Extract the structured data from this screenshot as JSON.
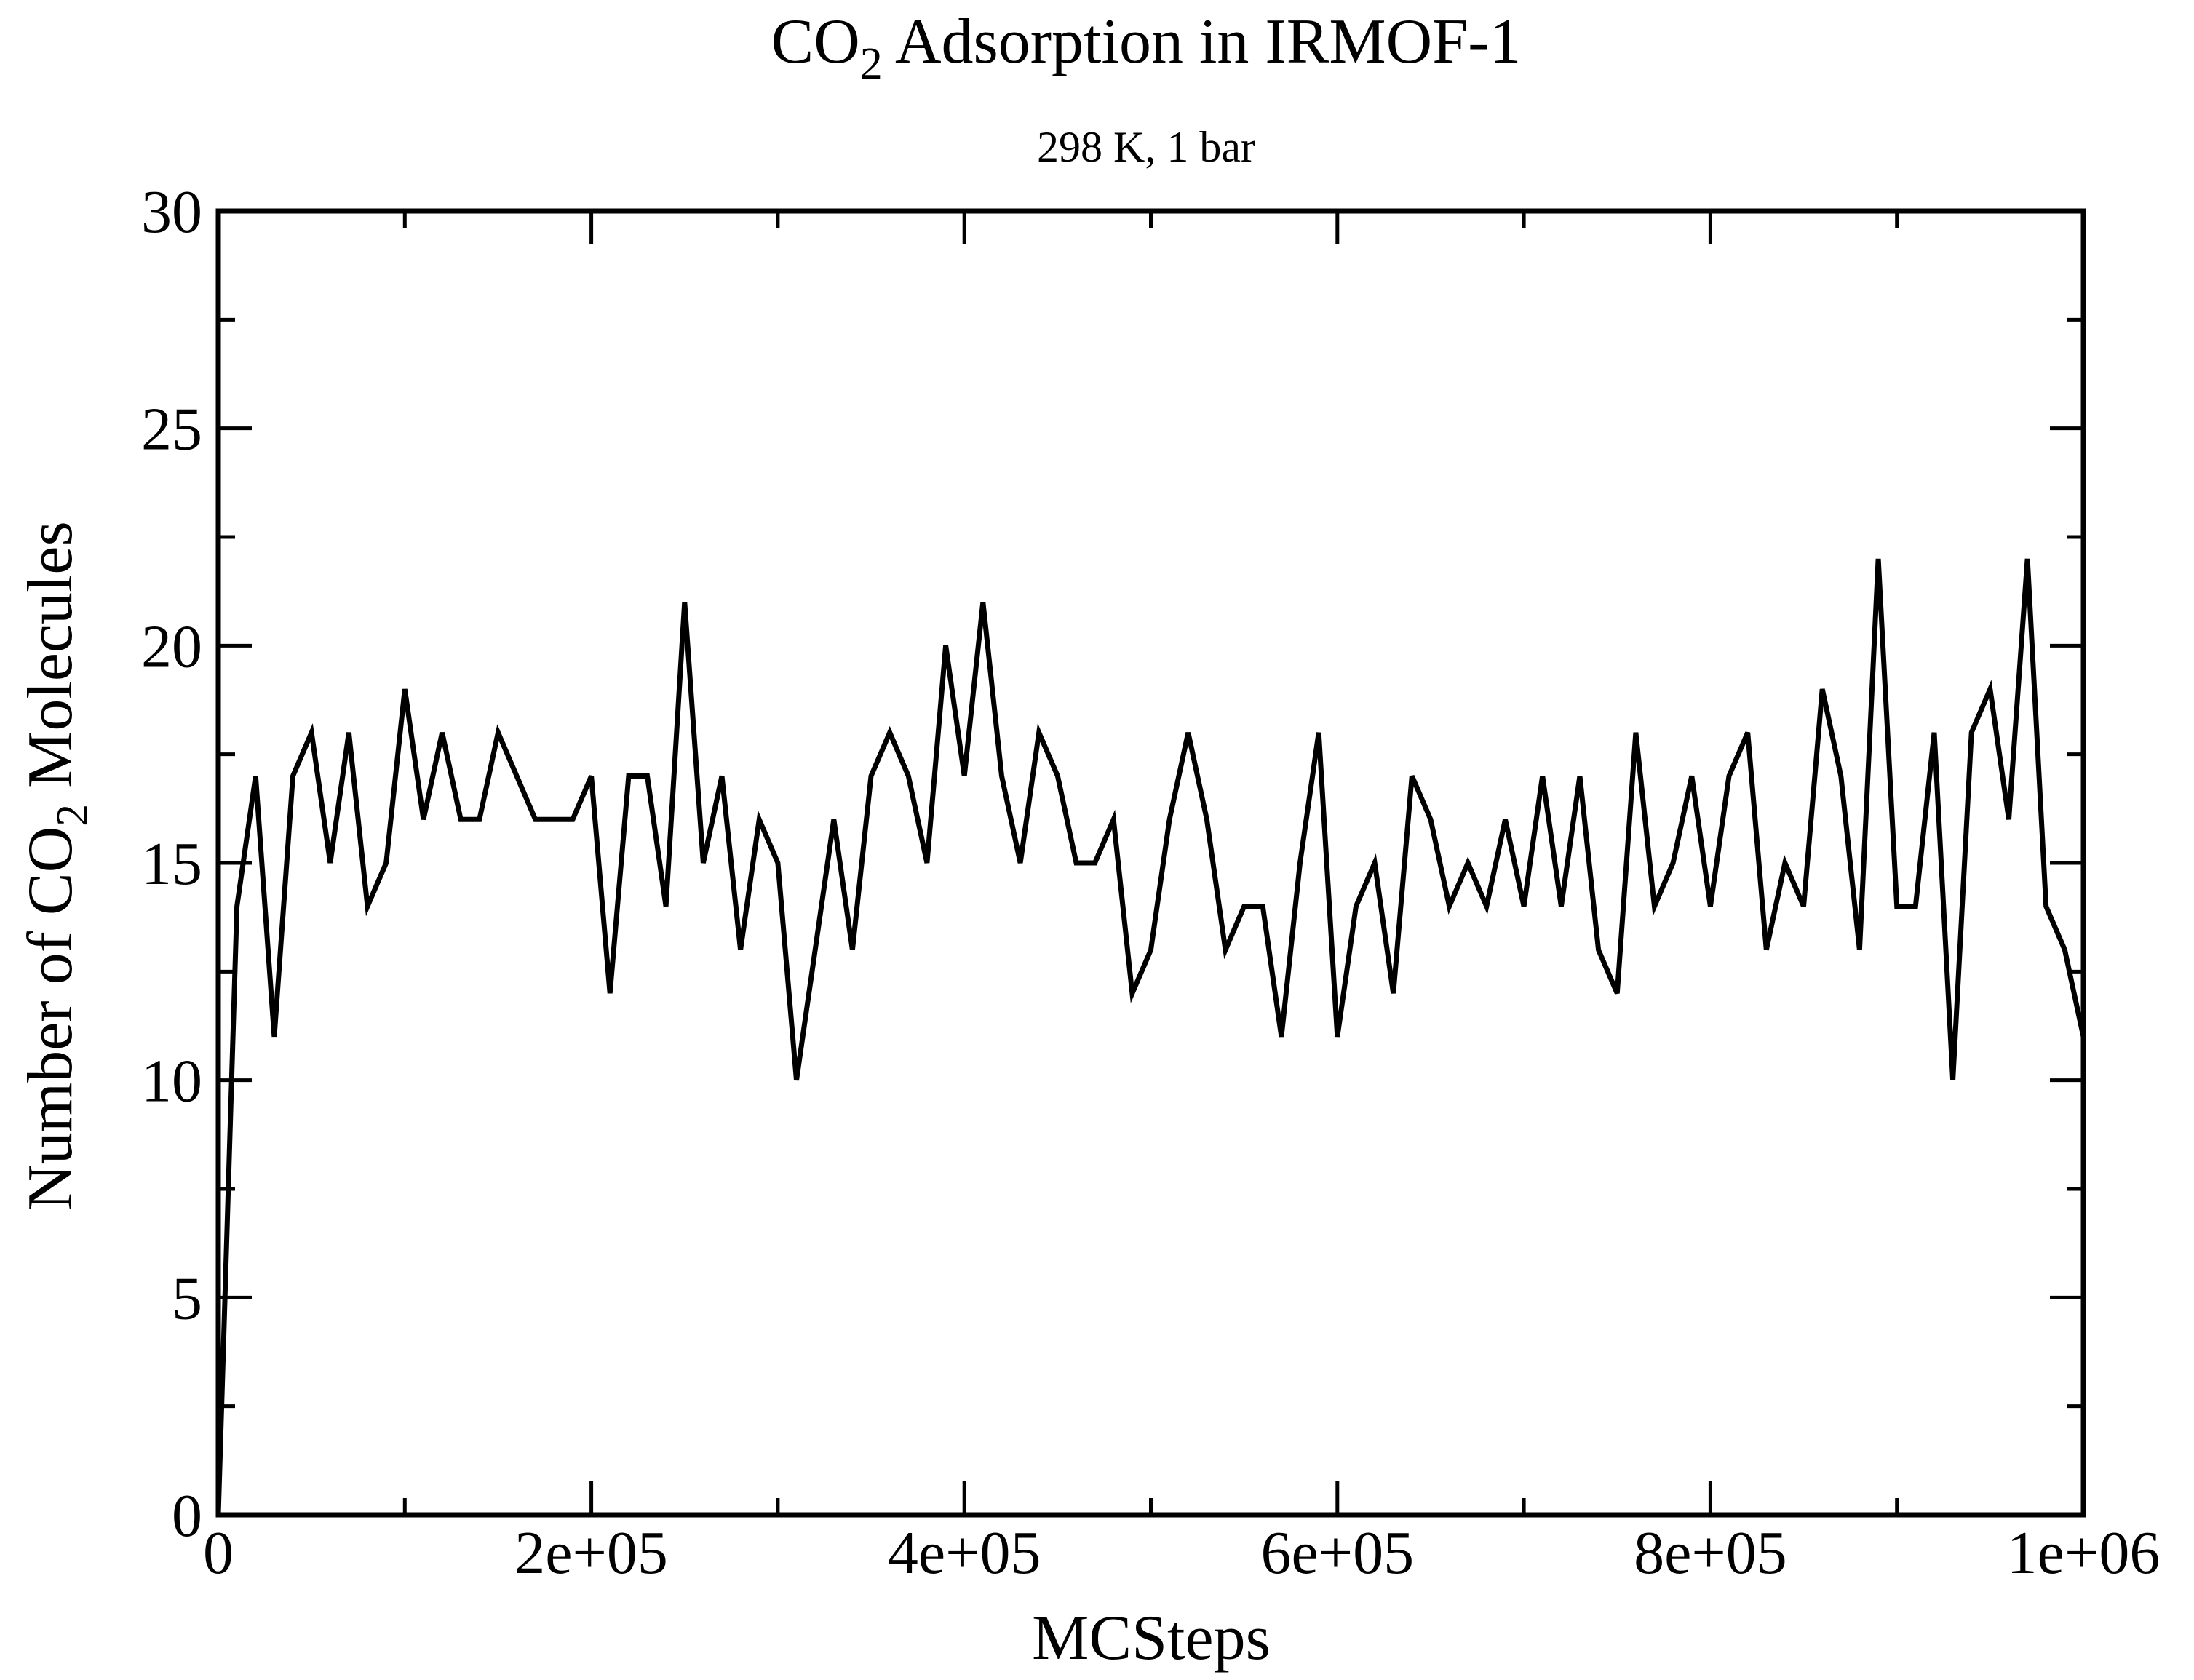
{
  "chart_data": {
    "type": "line",
    "title_main": "CO",
    "title_sub": "2",
    "title_rest": " Adsorption in IRMOF-1",
    "subtitle": "298 K, 1 bar",
    "xlabel": "MCSteps",
    "ylabel_main": "Number of CO",
    "ylabel_sub": "2",
    "ylabel_rest": " Molecules",
    "xlim": [
      0,
      1000000
    ],
    "ylim": [
      0,
      30
    ],
    "x_ticks": [
      {
        "value": 0,
        "label": "0"
      },
      {
        "value": 200000,
        "label": "2e+05"
      },
      {
        "value": 400000,
        "label": "4e+05"
      },
      {
        "value": 600000,
        "label": "6e+05"
      },
      {
        "value": 800000,
        "label": "8e+05"
      },
      {
        "value": 1000000,
        "label": "1e+06"
      }
    ],
    "x_minor_ticks": [
      100000,
      300000,
      500000,
      700000,
      900000
    ],
    "y_ticks": [
      {
        "value": 0,
        "label": "0"
      },
      {
        "value": 5,
        "label": "5"
      },
      {
        "value": 10,
        "label": "10"
      },
      {
        "value": 15,
        "label": "15"
      },
      {
        "value": 20,
        "label": "20"
      },
      {
        "value": 25,
        "label": "25"
      },
      {
        "value": 30,
        "label": "30"
      }
    ],
    "y_minor_ticks": [
      2.5,
      7.5,
      12.5,
      17.5,
      22.5,
      27.5
    ],
    "grid": false,
    "line_color": "#000000",
    "series": [
      {
        "x": [
          0,
          10000,
          20000,
          30000,
          40000,
          50000,
          60000,
          70000,
          80000,
          90000,
          100000,
          110000,
          120000,
          130000,
          140000,
          150000,
          160000,
          170000,
          180000,
          190000,
          200000,
          210000,
          220000,
          230000,
          240000,
          250000,
          260000,
          270000,
          280000,
          290000,
          300000,
          310000,
          320000,
          330000,
          340000,
          350000,
          360000,
          370000,
          380000,
          390000,
          400000,
          410000,
          420000,
          430000,
          440000,
          450000,
          460000,
          470000,
          480000,
          490000,
          500000,
          510000,
          520000,
          530000,
          540000,
          550000,
          560000,
          570000,
          580000,
          590000,
          600000,
          610000,
          620000,
          630000,
          640000,
          650000,
          660000,
          670000,
          680000,
          690000,
          700000,
          710000,
          720000,
          730000,
          740000,
          750000,
          760000,
          770000,
          780000,
          790000,
          800000,
          810000,
          820000,
          830000,
          840000,
          850000,
          860000,
          870000,
          880000,
          890000,
          900000,
          910000,
          920000,
          930000,
          940000,
          950000,
          960000,
          970000,
          980000,
          990000,
          1000000
        ],
        "y": [
          0,
          14,
          17,
          11,
          17,
          18,
          15,
          18,
          14,
          15,
          19,
          16,
          18,
          16,
          16,
          18,
          17,
          16,
          16,
          16,
          17,
          12,
          17,
          17,
          14,
          21,
          15,
          17,
          13,
          16,
          15,
          10,
          13,
          16,
          13,
          17,
          18,
          17,
          15,
          20,
          17,
          21,
          17,
          15,
          18,
          17,
          15,
          15,
          16,
          12,
          13,
          16,
          18,
          16,
          13,
          14,
          14,
          11,
          15,
          18,
          11,
          14,
          15,
          12,
          17,
          16,
          14,
          15,
          14,
          16,
          14,
          17,
          14,
          17,
          13,
          12,
          18,
          14,
          15,
          17,
          14,
          17,
          18,
          13,
          15,
          14,
          19,
          17,
          13,
          22,
          14,
          14,
          18,
          10,
          18,
          19,
          16,
          22,
          14,
          13,
          11
        ]
      }
    ]
  }
}
